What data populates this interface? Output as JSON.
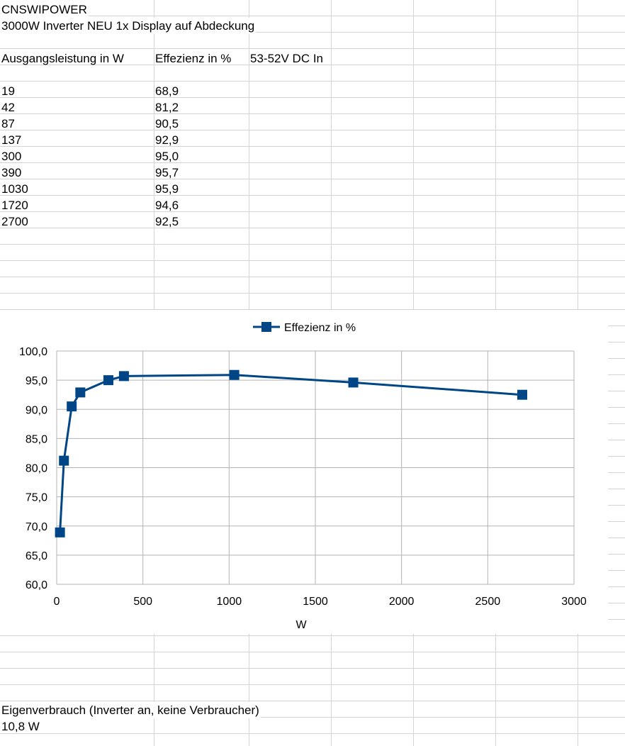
{
  "sheet": {
    "title": "CNSWIPOWER",
    "subtitle": "3000W Inverter NEU 1x Display auf Abdeckung",
    "headers": [
      "Ausgangsleistung in W",
      "Effezienz in %",
      "53-52V DC In"
    ],
    "rows": [
      [
        "19",
        "68,9"
      ],
      [
        "42",
        "81,2"
      ],
      [
        "87",
        "90,5"
      ],
      [
        "137",
        "92,9"
      ],
      [
        "300",
        "95,0"
      ],
      [
        "390",
        "95,7"
      ],
      [
        "1030",
        "95,9"
      ],
      [
        "1720",
        "94,6"
      ],
      [
        "2700",
        "92,5"
      ]
    ],
    "footer_label": "Eigenverbrauch (Inverter an, keine Verbraucher)",
    "footer_value": "10,8 W",
    "colors": {
      "grid": "#d4d4d4",
      "series": "#004586"
    }
  },
  "chart_data": {
    "type": "scatter",
    "xlabel": "W",
    "ylabel": "",
    "xlim": [
      0,
      3000
    ],
    "ylim": [
      60,
      100
    ],
    "x_ticks": [
      "0",
      "500",
      "1000",
      "1500",
      "2000",
      "2500",
      "3000"
    ],
    "y_ticks": [
      "100,0",
      "95,0",
      "90,0",
      "85,0",
      "80,0",
      "75,0",
      "70,0",
      "65,0",
      "60,0"
    ],
    "grid": true,
    "legend_position": "top",
    "series": [
      {
        "name": "Effezienz in %",
        "color": "#004586",
        "marker": "square",
        "x": [
          19,
          42,
          87,
          137,
          300,
          390,
          1030,
          1720,
          2700
        ],
        "y": [
          68.9,
          81.2,
          90.5,
          92.9,
          95.0,
          95.7,
          95.9,
          94.6,
          92.5
        ]
      }
    ]
  }
}
